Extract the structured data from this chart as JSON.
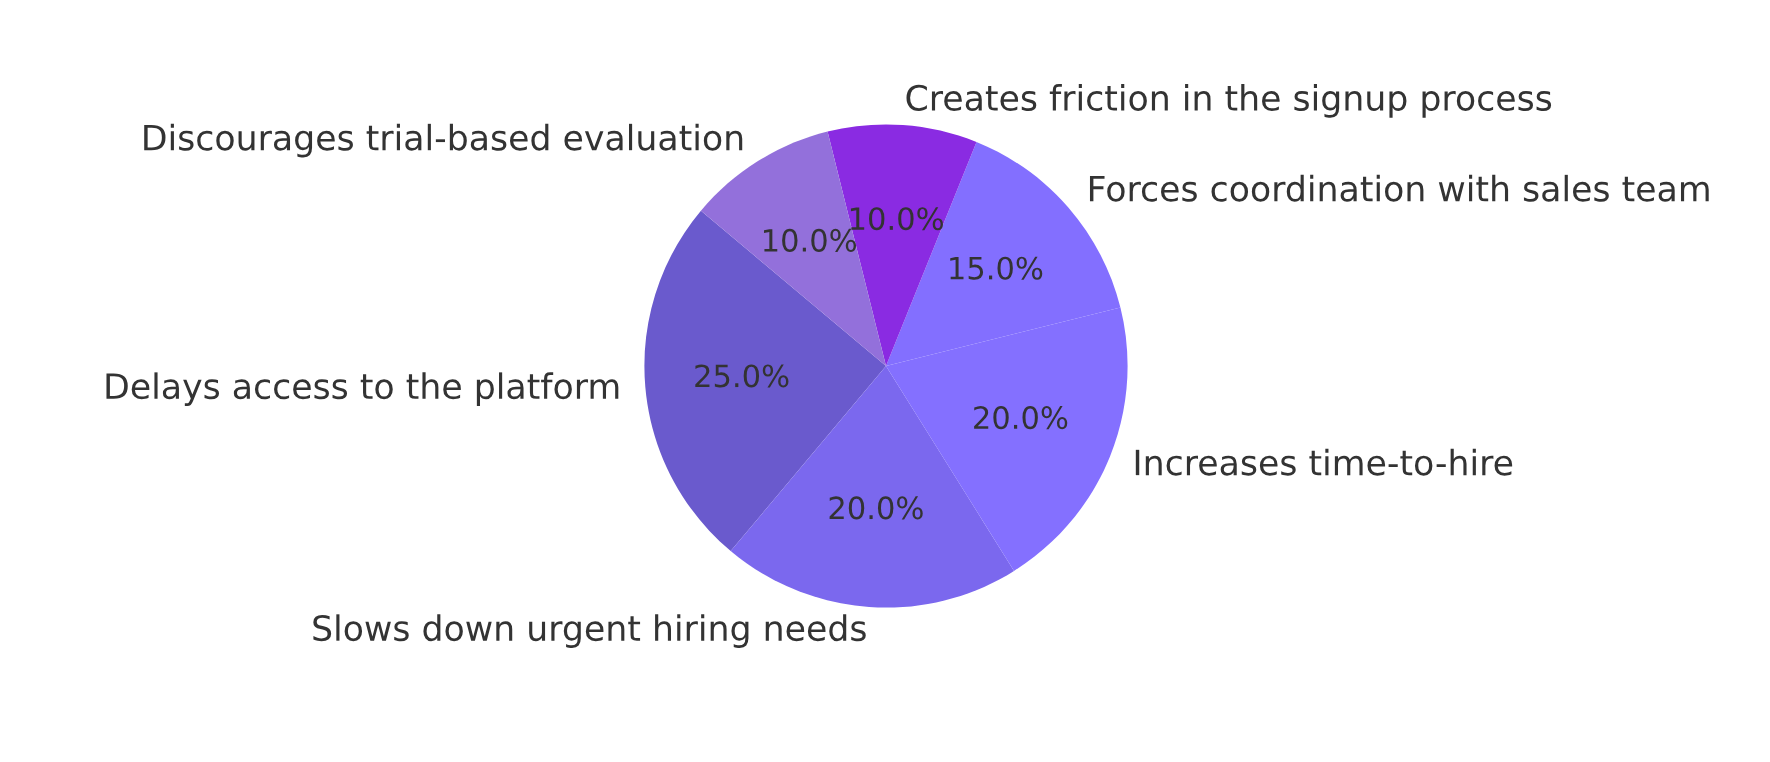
{
  "chart_data": {
    "type": "pie",
    "categories": [
      "Delays access to the platform",
      "Slows down urgent hiring needs",
      "Increases time-to-hire",
      "Forces coordination with sales team",
      "Creates friction in the signup process",
      "Discourages trial-based evaluation"
    ],
    "values": [
      25,
      20,
      20,
      15,
      10,
      10
    ],
    "colors": [
      "#6a5acd",
      "#7b68ee",
      "#8470ff",
      "#836fff",
      "#8a2be2",
      "#9370db"
    ],
    "value_labels": [
      "25.0%",
      "20.0%",
      "20.0%",
      "15.0%",
      "10.0%",
      "10.0%"
    ]
  }
}
